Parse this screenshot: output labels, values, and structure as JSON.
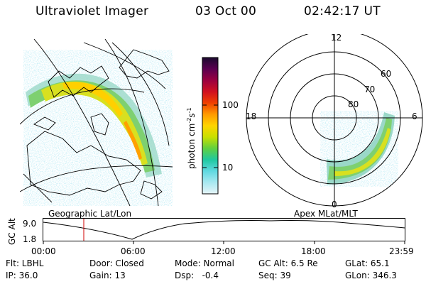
{
  "header": {
    "title": "Ultraviolet Imager",
    "date": "03 Oct 00",
    "time": "02:42:17 UT"
  },
  "geo_panel": {
    "label": "Geographic Lat/Lon"
  },
  "polar_panel": {
    "label": "Apex MLat/MLT",
    "mlt_labels": [
      "12",
      "18",
      "6",
      "0"
    ],
    "lat_labels": [
      "60",
      "70",
      "80"
    ]
  },
  "colorbar": {
    "unit_label": "photon cm",
    "unit_exp1": "-2",
    "unit_s": "s",
    "unit_exp2": "-1",
    "ticks": [
      "100",
      "10"
    ],
    "colors": [
      "#1a0a2e",
      "#5a0050",
      "#9a0040",
      "#d01020",
      "#f04000",
      "#ff9a00",
      "#ffd400",
      "#c8e000",
      "#60d040",
      "#20c8a0",
      "#60d8e0",
      "#a8e8f0",
      "#e6f4f8"
    ]
  },
  "orbit_plot": {
    "y_axis_label": "GC Alt",
    "y_ticks": [
      "9.0",
      "1.8"
    ],
    "x_ticks": [
      "00:00",
      "06:00",
      "12:00",
      "18:00",
      "23:59"
    ]
  },
  "info": {
    "row1": [
      "Flt: LBHL",
      "Door: Closed",
      "Mode: Normal",
      "GC Alt: 6.5 Re",
      "GLat: 65.1"
    ],
    "row2": [
      "IP: 36.0",
      "Gain: 13",
      "Dsp:   -0.4",
      "Seq: 39",
      "GLon: 346.3"
    ]
  }
}
